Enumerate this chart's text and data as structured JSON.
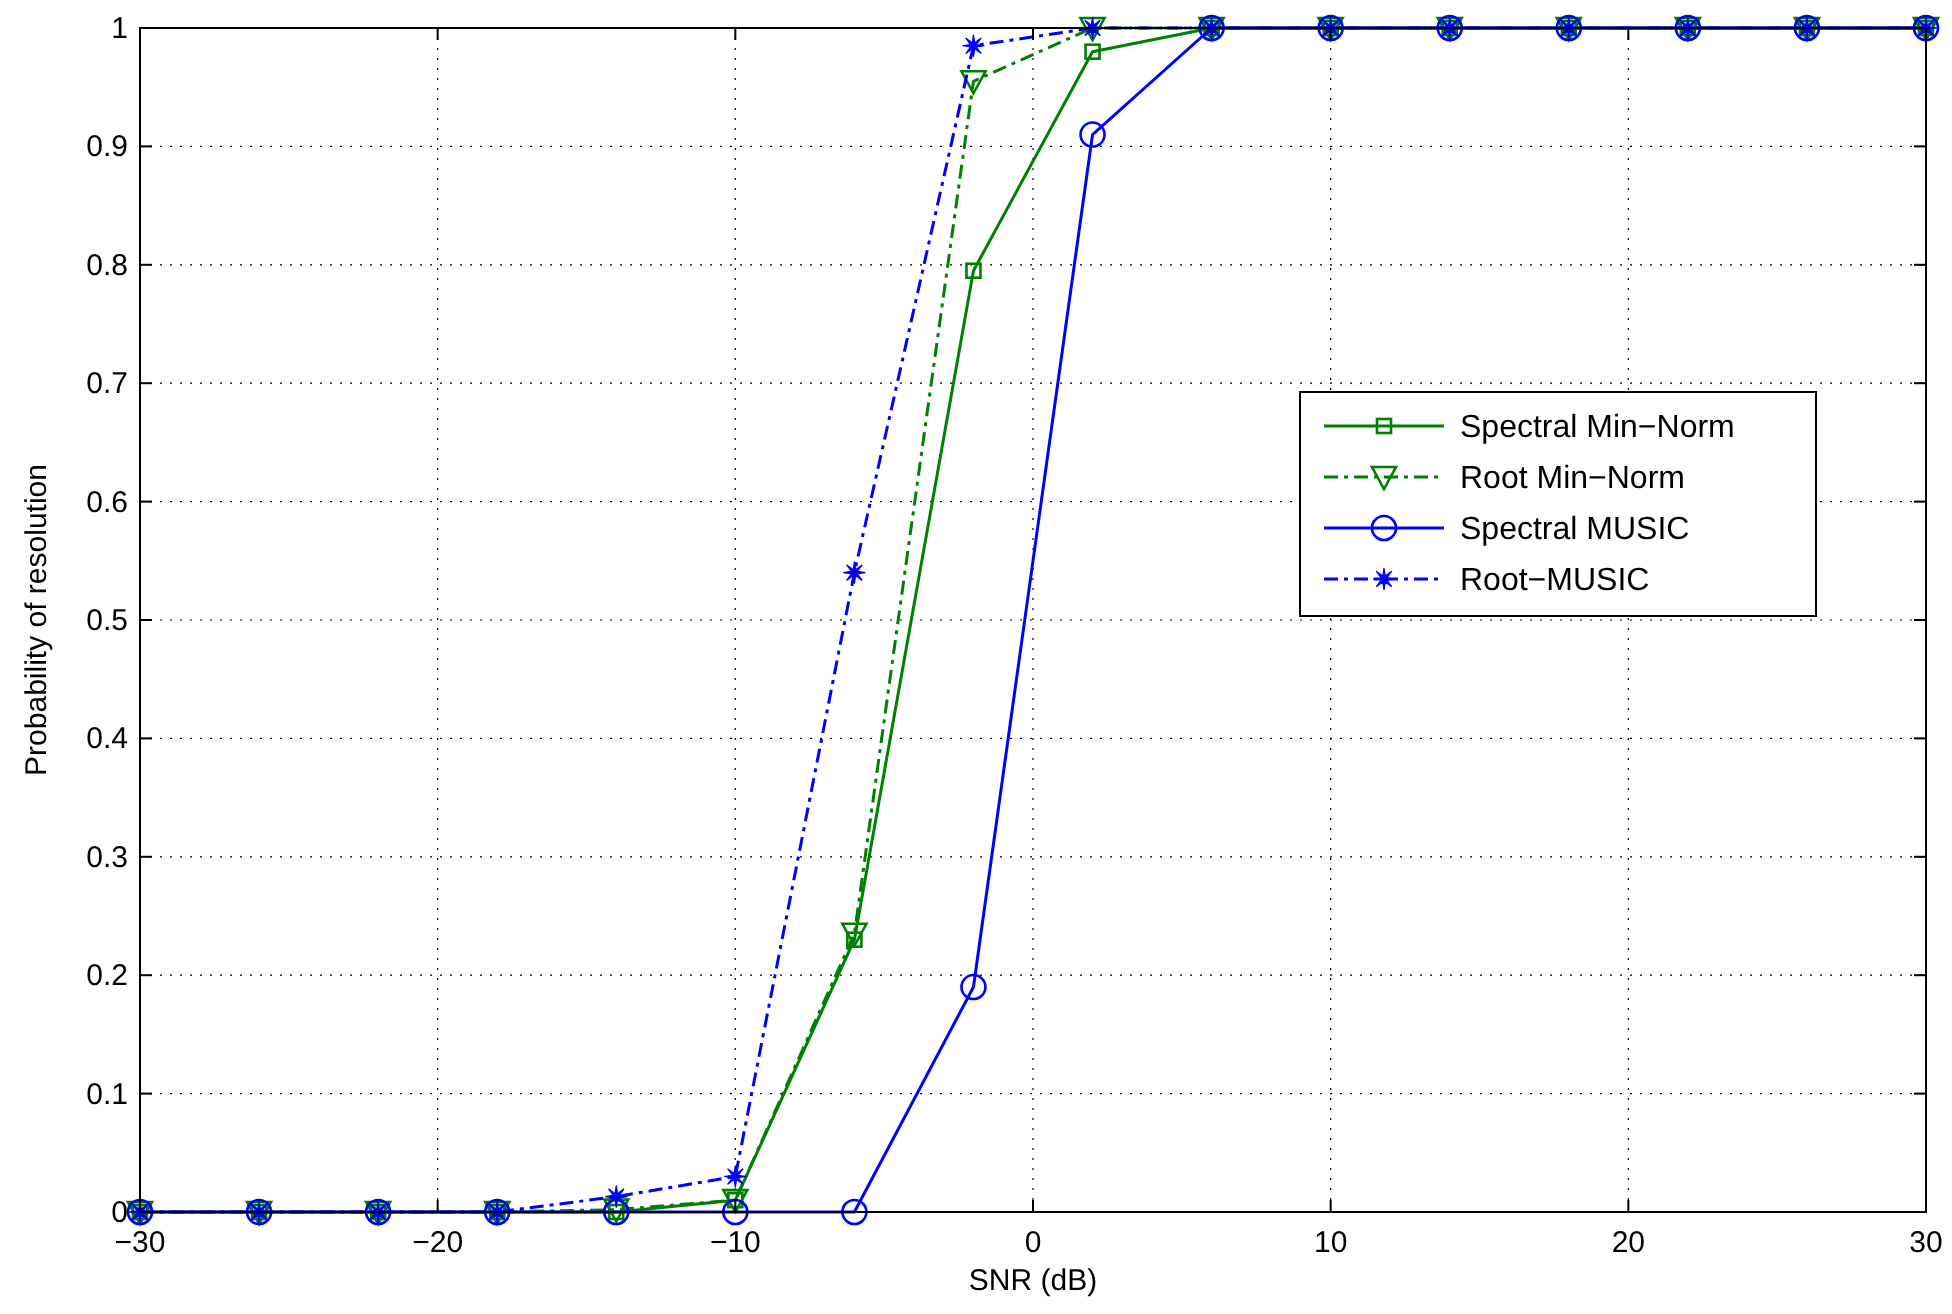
{
  "chart_data": {
    "type": "line",
    "xlabel": "SNR (dB)",
    "ylabel": "Probability of resolution",
    "x": [
      -30,
      -26,
      -22,
      -18,
      -14,
      -10,
      -6,
      -2,
      2,
      6,
      10,
      14,
      18,
      22,
      26,
      30
    ],
    "xlim": [
      -30,
      30
    ],
    "xticks": [
      -30,
      -20,
      -10,
      0,
      10,
      20,
      30
    ],
    "ylim": [
      0,
      1
    ],
    "yticks": [
      0,
      0.1,
      0.2,
      0.3,
      0.4,
      0.5,
      0.6,
      0.7,
      0.8,
      0.9,
      1
    ],
    "grid": true,
    "legend": "right",
    "series": [
      {
        "name": "Spectral Min−Norm",
        "color": "#008000",
        "marker": "square",
        "line_style": "solid",
        "values": [
          0,
          0,
          0,
          0,
          0,
          0.01,
          0.23,
          0.795,
          0.98,
          1,
          1,
          1,
          1,
          1,
          1,
          1
        ]
      },
      {
        "name": "Root Min−Norm",
        "color": "#008000",
        "marker": "triangle",
        "line_style": "dashed",
        "values": [
          0,
          0,
          0,
          0,
          0.002,
          0.01,
          0.235,
          0.955,
          1,
          1,
          1,
          1,
          1,
          1,
          1,
          1
        ]
      },
      {
        "name": "Spectral MUSIC",
        "color": "#0000ff",
        "marker": "circle",
        "line_style": "solid",
        "values": [
          0,
          0,
          0,
          0,
          0,
          0,
          0,
          0.19,
          0.91,
          1,
          1,
          1,
          1,
          1,
          1,
          1
        ]
      },
      {
        "name": "Root−MUSIC",
        "color": "#0000ff",
        "marker": "star",
        "line_style": "dashed",
        "values": [
          0,
          0,
          0,
          0,
          0.013,
          0.03,
          0.54,
          0.985,
          1,
          1,
          1,
          1,
          1,
          1,
          1,
          1
        ]
      }
    ]
  }
}
